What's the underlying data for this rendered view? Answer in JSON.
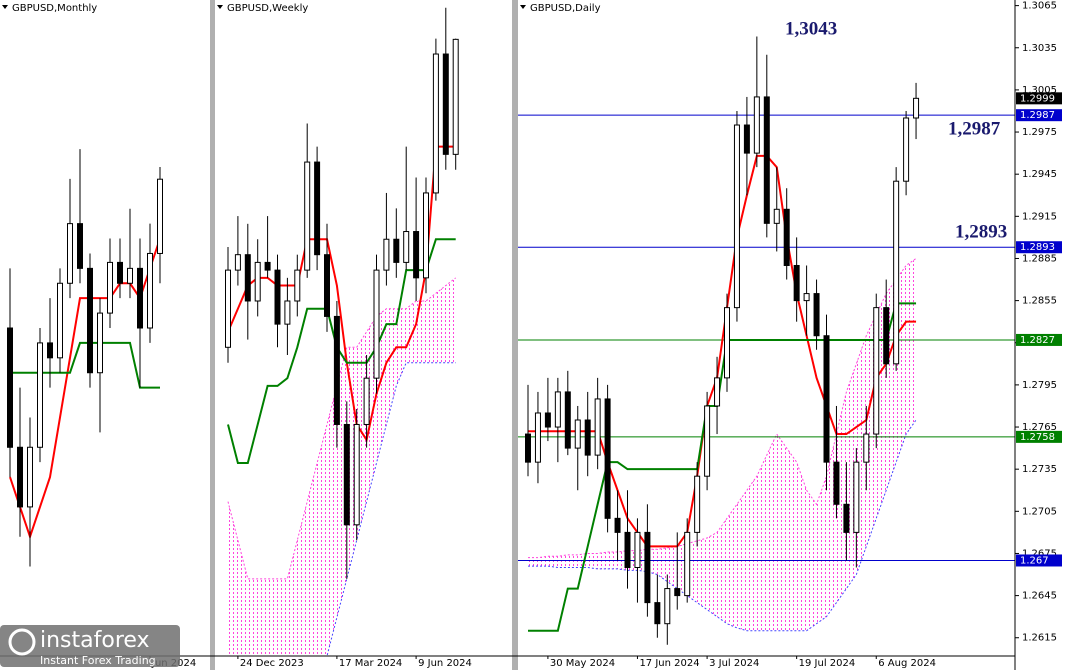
{
  "chart_data": [
    {
      "type": "candlestick",
      "title": "GBPUSD,Monthly",
      "ylim": [
        1.14,
        1.36
      ],
      "categories": [
        null,
        null,
        null,
        null,
        null,
        null,
        null,
        null,
        null,
        null,
        null,
        null,
        null,
        null,
        "Jun 2024",
        null
      ],
      "open": [
        1.25,
        1.21,
        1.19,
        1.21,
        1.245,
        1.24,
        1.265,
        1.285,
        1.27,
        1.235,
        1.255,
        1.272,
        1.265,
        1.27,
        1.25,
        1.275
      ],
      "high": [
        1.27,
        1.23,
        1.22,
        1.25,
        1.26,
        1.27,
        1.3,
        1.31,
        1.275,
        1.26,
        1.28,
        1.28,
        1.29,
        1.28,
        1.285,
        1.304
      ],
      "low": [
        1.2,
        1.18,
        1.17,
        1.205,
        1.23,
        1.235,
        1.26,
        1.265,
        1.23,
        1.215,
        1.25,
        1.26,
        1.26,
        1.23,
        1.245,
        1.265
      ],
      "close": [
        1.21,
        1.19,
        1.21,
        1.245,
        1.24,
        1.265,
        1.285,
        1.27,
        1.235,
        1.255,
        1.272,
        1.265,
        1.27,
        1.25,
        1.275,
        1.2999
      ],
      "lines": [
        {
          "color": "#ff0000",
          "values": [
            1.2,
            1.19,
            1.18,
            1.19,
            1.2,
            1.22,
            1.24,
            1.26,
            1.26,
            1.26,
            1.26,
            1.265,
            1.265,
            1.26,
            1.27,
            1.28
          ]
        },
        {
          "color": "#008000",
          "values": [
            1.235,
            1.235,
            1.235,
            1.235,
            1.235,
            1.235,
            1.235,
            1.245,
            1.245,
            1.245,
            1.245,
            1.245,
            1.245,
            1.23,
            1.23,
            1.23
          ]
        }
      ]
    },
    {
      "type": "candlestick",
      "title": "GBPUSD,Weekly",
      "ylim": [
        1.22,
        1.305
      ],
      "categories": [
        null,
        "24 Dec 2023",
        null,
        null,
        null,
        null,
        null,
        null,
        null,
        null,
        null,
        "17 Mar 2024",
        null,
        null,
        null,
        null,
        null,
        null,
        null,
        "9 Jun 2024",
        null,
        null,
        null,
        null
      ],
      "open": [
        1.26,
        1.27,
        1.272,
        1.266,
        1.271,
        1.27,
        1.263,
        1.266,
        1.27,
        1.284,
        1.272,
        1.264,
        1.25,
        1.237,
        1.25,
        1.256,
        1.27,
        1.274,
        1.271,
        1.275,
        1.269,
        1.28,
        1.298,
        1.285
      ],
      "high": [
        1.273,
        1.277,
        1.276,
        1.274,
        1.277,
        1.272,
        1.269,
        1.272,
        1.289,
        1.286,
        1.276,
        1.266,
        1.253,
        1.252,
        1.259,
        1.272,
        1.28,
        1.278,
        1.286,
        1.282,
        1.282,
        1.3,
        1.304,
        1.3
      ],
      "low": [
        1.258,
        1.268,
        1.261,
        1.264,
        1.269,
        1.26,
        1.259,
        1.264,
        1.269,
        1.27,
        1.262,
        1.247,
        1.23,
        1.235,
        1.247,
        1.254,
        1.268,
        1.269,
        1.27,
        1.266,
        1.267,
        1.279,
        1.283,
        1.283
      ],
      "close": [
        1.27,
        1.272,
        1.266,
        1.271,
        1.27,
        1.263,
        1.266,
        1.27,
        1.284,
        1.272,
        1.264,
        1.25,
        1.237,
        1.25,
        1.256,
        1.27,
        1.274,
        1.271,
        1.275,
        1.269,
        1.28,
        1.298,
        1.285,
        1.2999
      ],
      "cloud": {
        "color": "#ff44dd",
        "span_a": [
          1.24,
          1.235,
          1.23,
          1.23,
          1.23,
          1.23,
          1.23,
          1.235,
          1.24,
          1.245,
          1.25,
          1.255,
          1.26,
          1.26,
          1.262,
          1.264,
          1.265,
          1.265,
          1.265,
          1.266,
          1.266,
          1.267,
          1.268,
          1.269
        ],
        "span_b": [
          1.22,
          1.22,
          1.22,
          1.22,
          1.22,
          1.22,
          1.22,
          1.22,
          1.22,
          1.22,
          1.22,
          1.225,
          1.23,
          1.235,
          1.24,
          1.245,
          1.25,
          1.255,
          1.258,
          1.258,
          1.258,
          1.258,
          1.258,
          1.258
        ]
      },
      "lines": [
        {
          "color": "#ff0000",
          "values": [
            1.262,
            1.265,
            1.268,
            1.269,
            1.269,
            1.268,
            1.268,
            1.268,
            1.274,
            1.274,
            1.274,
            1.268,
            1.258,
            1.25,
            1.248,
            1.254,
            1.258,
            1.26,
            1.26,
            1.263,
            1.27,
            1.286,
            1.286,
            1.286
          ]
        },
        {
          "color": "#008000",
          "values": [
            1.25,
            1.245,
            1.245,
            1.25,
            1.255,
            1.255,
            1.256,
            1.26,
            1.265,
            1.265,
            1.265,
            1.26,
            1.258,
            1.258,
            1.258,
            1.26,
            1.263,
            1.263,
            1.27,
            1.27,
            1.27,
            1.274,
            1.274,
            1.274
          ]
        }
      ]
    },
    {
      "type": "candlestick",
      "title": "GBPUSD,Daily",
      "ylim": [
        1.2602,
        1.3069
      ],
      "yticks": [
        1.2615,
        1.2645,
        1.2675,
        1.2705,
        1.2735,
        1.2765,
        1.2795,
        1.2825,
        1.2855,
        1.2885,
        1.2915,
        1.2945,
        1.2975,
        1.3005,
        1.3035,
        1.3065
      ],
      "categories": [
        null,
        null,
        "30 May 2024",
        null,
        null,
        null,
        null,
        null,
        null,
        null,
        null,
        "17 Jun 2024",
        null,
        null,
        null,
        null,
        null,
        null,
        "3 Jul 2024",
        null,
        null,
        null,
        null,
        null,
        null,
        null,
        null,
        "19 Jul 2024",
        null,
        null,
        null,
        null,
        null,
        null,
        null,
        "6 Aug 2024",
        null,
        null,
        null,
        null
      ],
      "open": [
        1.276,
        1.274,
        1.2775,
        1.2765,
        1.279,
        1.275,
        1.277,
        1.2745,
        1.2785,
        1.27,
        1.269,
        1.2665,
        1.269,
        1.264,
        1.2625,
        1.265,
        1.2645,
        1.269,
        1.273,
        1.278,
        1.28,
        1.285,
        1.298,
        1.296,
        1.3,
        1.291,
        1.292,
        1.288,
        1.2855,
        1.286,
        1.283,
        1.274,
        1.271,
        1.269,
        1.274,
        1.276,
        1.285,
        1.281,
        1.294,
        1.2985
      ],
      "high": [
        1.2795,
        1.279,
        1.28,
        1.28,
        1.2805,
        1.278,
        1.279,
        1.28,
        1.2795,
        1.272,
        1.272,
        1.27,
        1.271,
        1.266,
        1.266,
        1.269,
        1.27,
        1.274,
        1.279,
        1.2815,
        1.286,
        1.299,
        1.3,
        1.3043,
        1.303,
        1.295,
        1.2935,
        1.29,
        1.288,
        1.287,
        1.2845,
        1.278,
        1.274,
        1.275,
        1.278,
        1.286,
        1.287,
        1.295,
        1.299,
        1.301
      ],
      "low": [
        1.273,
        1.2725,
        1.2755,
        1.274,
        1.2745,
        1.272,
        1.273,
        1.2735,
        1.269,
        1.267,
        1.265,
        1.264,
        1.263,
        1.2615,
        1.261,
        1.2635,
        1.264,
        1.268,
        1.272,
        1.276,
        1.279,
        1.284,
        1.293,
        1.295,
        1.29,
        1.289,
        1.287,
        1.284,
        1.283,
        1.282,
        1.272,
        1.27,
        1.267,
        1.2665,
        1.272,
        1.275,
        1.28,
        1.2805,
        1.293,
        1.297
      ],
      "close": [
        1.274,
        1.2775,
        1.2765,
        1.279,
        1.275,
        1.277,
        1.2745,
        1.2785,
        1.27,
        1.269,
        1.2665,
        1.269,
        1.264,
        1.2625,
        1.265,
        1.2645,
        1.269,
        1.273,
        1.278,
        1.28,
        1.285,
        1.298,
        1.296,
        1.3,
        1.291,
        1.292,
        1.288,
        1.2855,
        1.286,
        1.283,
        1.274,
        1.271,
        1.269,
        1.274,
        1.276,
        1.285,
        1.281,
        1.294,
        1.2985,
        1.2999
      ],
      "cloud": {
        "color": "#ff44dd",
        "span_a": [
          1.2672,
          1.2672,
          1.2673,
          1.2673,
          1.2674,
          1.2674,
          1.2675,
          1.2675,
          1.2676,
          1.2676,
          1.2677,
          1.2677,
          1.2678,
          1.2678,
          1.2679,
          1.268,
          1.2682,
          1.2684,
          1.2686,
          1.269,
          1.27,
          1.271,
          1.272,
          1.273,
          1.2745,
          1.276,
          1.275,
          1.274,
          1.272,
          1.271,
          1.273,
          1.276,
          1.279,
          1.281,
          1.283,
          1.2845,
          1.286,
          1.287,
          1.288,
          1.2885
        ],
        "span_b": [
          1.2666,
          1.2666,
          1.2666,
          1.2665,
          1.2665,
          1.2665,
          1.2665,
          1.2664,
          1.2664,
          1.2664,
          1.2663,
          1.2663,
          1.2662,
          1.266,
          1.2655,
          1.265,
          1.2645,
          1.264,
          1.2635,
          1.263,
          1.2625,
          1.2622,
          1.262,
          1.262,
          1.262,
          1.262,
          1.262,
          1.262,
          1.262,
          1.2625,
          1.263,
          1.264,
          1.265,
          1.266,
          1.268,
          1.27,
          1.272,
          1.274,
          1.276,
          1.277
        ]
      },
      "lines": [
        {
          "color": "#ff0000",
          "values": [
            1.2762,
            1.2762,
            1.2762,
            1.2762,
            1.2762,
            1.2762,
            1.2762,
            1.2762,
            1.274,
            1.272,
            1.27,
            1.269,
            1.268,
            1.268,
            1.268,
            1.268,
            1.269,
            1.273,
            1.278,
            1.28,
            1.285,
            1.29,
            1.293,
            1.2958,
            1.2958,
            1.295,
            1.29,
            1.286,
            1.283,
            1.28,
            1.278,
            1.276,
            1.276,
            1.2765,
            1.277,
            1.28,
            1.281,
            1.283,
            1.284,
            1.284
          ]
        },
        {
          "color": "#008000",
          "values": [
            1.262,
            1.262,
            1.262,
            1.262,
            1.265,
            1.265,
            1.268,
            1.271,
            1.274,
            1.274,
            1.2735,
            1.2735,
            1.2735,
            1.2735,
            1.2735,
            1.2735,
            1.2735,
            1.2735,
            1.278,
            1.278,
            1.2827,
            1.2827,
            1.2827,
            1.2827,
            1.2827,
            1.2827,
            1.2827,
            1.2827,
            1.2827,
            1.2827,
            1.2827,
            1.2827,
            1.2827,
            1.2827,
            1.2827,
            1.2827,
            1.2827,
            1.2853,
            1.2853,
            1.2853
          ]
        }
      ],
      "levels": [
        {
          "value": 1.2987,
          "color": "#0000cc"
        },
        {
          "value": 1.2893,
          "color": "#0000cc"
        },
        {
          "value": 1.2827,
          "color": "#008000"
        },
        {
          "value": 1.2758,
          "color": "#008000"
        },
        {
          "value": 1.267,
          "color": "#0000cc"
        }
      ],
      "last_price": 1.2999,
      "annotations": [
        "1,3043",
        "1,2987",
        "1,2893"
      ]
    }
  ],
  "branding": {
    "name": "instaforex",
    "tagline": "Instant Forex Trading"
  }
}
